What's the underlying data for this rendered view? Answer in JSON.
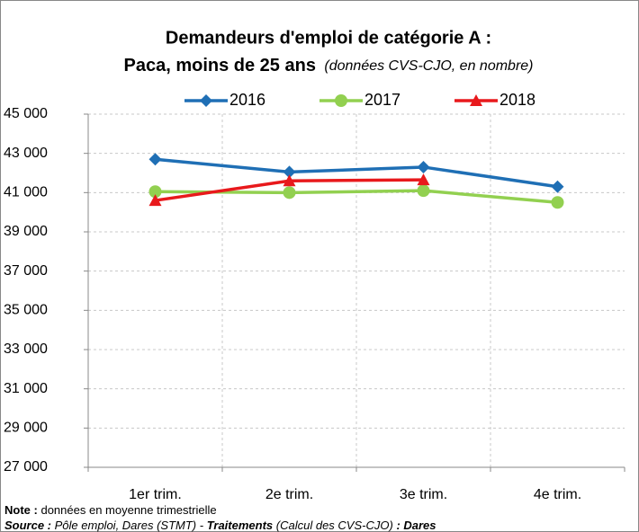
{
  "chart_data": {
    "type": "line",
    "title": "Demandeurs d'emploi de catégorie A :",
    "subtitle": "Paca, moins de 25 ans",
    "subtitle_note": "(données CVS-CJO, en nombre)",
    "categories": [
      "1er trim.",
      "2e trim.",
      "3e trim.",
      "4e trim."
    ],
    "series": [
      {
        "name": "2016",
        "color": "#1f6fb5",
        "marker": "diamond",
        "values": [
          42700,
          42050,
          42300,
          41300
        ]
      },
      {
        "name": "2017",
        "color": "#92d050",
        "marker": "circle",
        "values": [
          41050,
          41000,
          41100,
          40500
        ]
      },
      {
        "name": "2018",
        "color": "#e8191c",
        "marker": "triangle",
        "values": [
          40600,
          41600,
          41650,
          null
        ]
      }
    ],
    "ylim": [
      27000,
      45000
    ],
    "yticks": [
      {
        "value": 27000,
        "label": "27 000"
      },
      {
        "value": 29000,
        "label": "29 000"
      },
      {
        "value": 31000,
        "label": "31 000"
      },
      {
        "value": 33000,
        "label": "33 000"
      },
      {
        "value": 35000,
        "label": "35 000"
      },
      {
        "value": 37000,
        "label": "37 000"
      },
      {
        "value": 39000,
        "label": "39 000"
      },
      {
        "value": 41000,
        "label": "41 000"
      },
      {
        "value": 43000,
        "label": "43 000"
      },
      {
        "value": 45000,
        "label": "45 000"
      }
    ],
    "grid": true,
    "legend": "top",
    "note": {
      "label": "Note :",
      "text": "données en moyenne trimestrielle"
    },
    "source": {
      "label": "Source :",
      "text1": "Pôle emploi, Dares (STMT) -",
      "label2": "Traitements",
      "text2": "(Calcul des CVS-CJO)",
      "label3": ": Dares"
    }
  }
}
